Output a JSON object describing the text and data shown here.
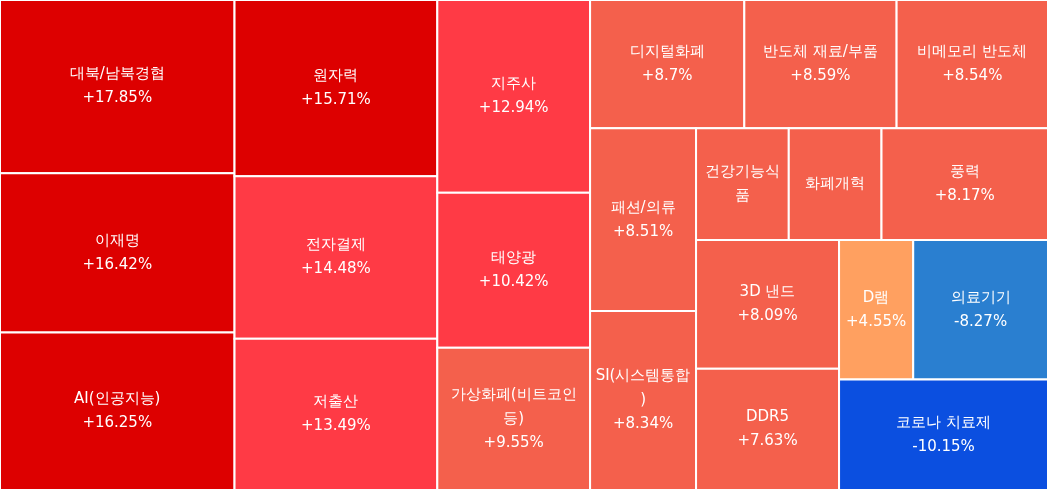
{
  "chart_data": {
    "type": "other",
    "categories": [
      "대북/남북경협",
      "이재명",
      "AI(인공지능)",
      "원자력",
      "전자결제",
      "저출산",
      "지주사",
      "태양광",
      "가상화폐(비트코인 등)",
      "디지털화폐",
      "반도체 재료/부품",
      "비메모리 반도체",
      "패션/의류",
      "SI(시스템통합)",
      "건강기능식품",
      "화폐개혁",
      "풍력",
      "3D 낸드",
      "DDR5",
      "D램",
      "의료기기",
      "코로나 치료제"
    ],
    "values": [
      17.85,
      16.42,
      16.25,
      15.71,
      14.48,
      13.49,
      12.94,
      10.42,
      9.55,
      8.7,
      8.59,
      8.54,
      8.51,
      8.34,
      null,
      null,
      8.17,
      8.09,
      7.63,
      4.55,
      -8.27,
      -10.15
    ],
    "value_labels": [
      "+17.85%",
      "+16.42%",
      "+16.25%",
      "+15.71%",
      "+14.48%",
      "+13.49%",
      "+12.94%",
      "+10.42%",
      "+9.55%",
      "+8.7%",
      "+8.59%",
      "+8.54%",
      "+8.51%",
      "+8.34%",
      null,
      null,
      "+8.17%",
      "+8.09%",
      "+7.63%",
      "+4.55%",
      "-8.27%",
      "-10.15%"
    ],
    "colors": [
      "#dd0000",
      "#dd0000",
      "#dd0000",
      "#dd0000",
      "#ff3a45",
      "#ff3a45",
      "#ff3a45",
      "#ff3a45",
      "#f4604c",
      "#f4604c",
      "#f4604c",
      "#f4604c",
      "#f4604c",
      "#f4604c",
      "#f4604c",
      "#f4604c",
      "#f4604c",
      "#f4604c",
      "#f4604c",
      "#ffa060",
      "#2a7fd0",
      "#0b4fe0"
    ]
  }
}
